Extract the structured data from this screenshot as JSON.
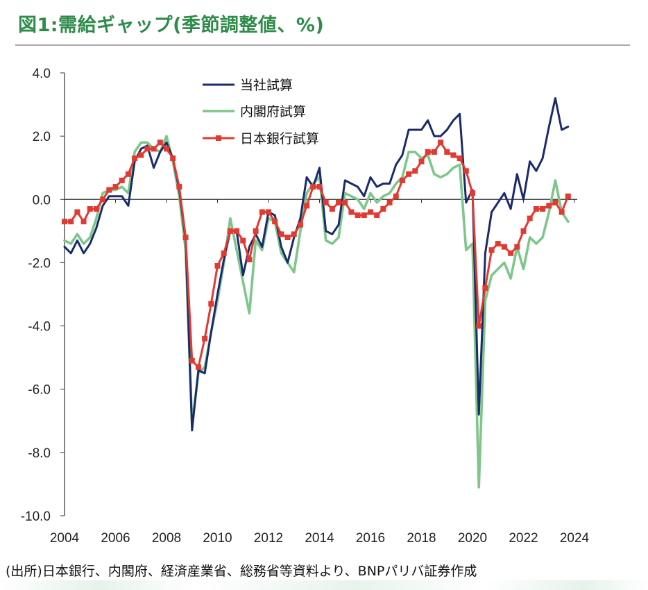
{
  "header": {
    "title": "図1:需給ギャップ(季節調整値、%)"
  },
  "source_note": "(出所)日本銀行、内閣府、経済産業省、総務省等資料より、BNPパリバ証券作成",
  "colors": {
    "title": "#2e8b4a",
    "series1": "#1b2a6b",
    "series2": "#7fc68b",
    "series3": "#e03a31"
  },
  "chart_data": {
    "type": "line",
    "xlabel": "",
    "ylabel": "",
    "xlim": [
      2004,
      2024
    ],
    "ylim": [
      -10,
      4
    ],
    "x_ticks": [
      "2004",
      "2006",
      "2008",
      "2010",
      "2012",
      "2014",
      "2016",
      "2018",
      "2020",
      "2022",
      "2024"
    ],
    "y_ticks": [
      "4.0",
      "2.0",
      "0.0",
      "-2.0",
      "-4.0",
      "-6.0",
      "-8.0",
      "-10.0"
    ],
    "legend_position": "top-center",
    "grid": false,
    "series": [
      {
        "name": "当社試算",
        "color": "#1b2a6b",
        "marker": "none",
        "points": [
          [
            2004.0,
            -1.5
          ],
          [
            2004.25,
            -1.7
          ],
          [
            2004.5,
            -1.3
          ],
          [
            2004.75,
            -1.7
          ],
          [
            2005.0,
            -1.4
          ],
          [
            2005.25,
            -0.9
          ],
          [
            2005.5,
            -0.2
          ],
          [
            2005.75,
            0.1
          ],
          [
            2006.0,
            0.1
          ],
          [
            2006.25,
            0.1
          ],
          [
            2006.5,
            -0.2
          ],
          [
            2006.75,
            1.2
          ],
          [
            2007.0,
            1.6
          ],
          [
            2007.25,
            1.7
          ],
          [
            2007.5,
            1.0
          ],
          [
            2007.75,
            1.5
          ],
          [
            2008.0,
            1.8
          ],
          [
            2008.25,
            1.3
          ],
          [
            2008.5,
            0.3
          ],
          [
            2008.75,
            -1.3
          ],
          [
            2009.0,
            -7.3
          ],
          [
            2009.25,
            -5.4
          ],
          [
            2009.5,
            -5.5
          ],
          [
            2009.75,
            -4.2
          ],
          [
            2010.0,
            -3.0
          ],
          [
            2010.25,
            -1.9
          ],
          [
            2010.5,
            -1.0
          ],
          [
            2010.75,
            -1.0
          ],
          [
            2011.0,
            -2.4
          ],
          [
            2011.25,
            -1.5
          ],
          [
            2011.5,
            -1.1
          ],
          [
            2011.75,
            -1.5
          ],
          [
            2012.0,
            -0.4
          ],
          [
            2012.25,
            -0.5
          ],
          [
            2012.5,
            -1.5
          ],
          [
            2012.75,
            -2.0
          ],
          [
            2013.0,
            -1.2
          ],
          [
            2013.25,
            -0.6
          ],
          [
            2013.5,
            0.7
          ],
          [
            2013.75,
            0.4
          ],
          [
            2014.0,
            1.0
          ],
          [
            2014.25,
            -1.0
          ],
          [
            2014.5,
            -1.1
          ],
          [
            2014.75,
            -0.8
          ],
          [
            2015.0,
            0.6
          ],
          [
            2015.25,
            0.5
          ],
          [
            2015.5,
            0.4
          ],
          [
            2015.75,
            0.1
          ],
          [
            2016.0,
            0.7
          ],
          [
            2016.25,
            0.4
          ],
          [
            2016.5,
            0.5
          ],
          [
            2016.75,
            0.5
          ],
          [
            2017.0,
            1.1
          ],
          [
            2017.25,
            1.4
          ],
          [
            2017.5,
            2.2
          ],
          [
            2017.75,
            2.2
          ],
          [
            2018.0,
            2.2
          ],
          [
            2018.25,
            2.5
          ],
          [
            2018.5,
            2.0
          ],
          [
            2018.75,
            2.0
          ],
          [
            2019.0,
            2.2
          ],
          [
            2019.25,
            2.5
          ],
          [
            2019.5,
            2.7
          ],
          [
            2019.75,
            -0.1
          ],
          [
            2020.0,
            0.3
          ],
          [
            2020.25,
            -6.8
          ],
          [
            2020.5,
            -1.7
          ],
          [
            2020.75,
            -0.4
          ],
          [
            2021.0,
            -0.1
          ],
          [
            2021.25,
            0.2
          ],
          [
            2021.5,
            -0.3
          ],
          [
            2021.75,
            0.8
          ],
          [
            2022.0,
            0.0
          ],
          [
            2022.25,
            1.2
          ],
          [
            2022.5,
            0.9
          ],
          [
            2022.75,
            1.3
          ],
          [
            2023.0,
            2.3
          ],
          [
            2023.25,
            3.2
          ],
          [
            2023.5,
            2.2
          ],
          [
            2023.75,
            2.3
          ]
        ]
      },
      {
        "name": "内閣府試算",
        "color": "#7fc68b",
        "marker": "none",
        "points": [
          [
            2004.0,
            -1.3
          ],
          [
            2004.25,
            -1.4
          ],
          [
            2004.5,
            -1.1
          ],
          [
            2004.75,
            -1.4
          ],
          [
            2005.0,
            -1.2
          ],
          [
            2005.25,
            -0.6
          ],
          [
            2005.5,
            0.2
          ],
          [
            2005.75,
            0.3
          ],
          [
            2006.0,
            0.3
          ],
          [
            2006.25,
            0.4
          ],
          [
            2006.5,
            0.2
          ],
          [
            2006.75,
            1.5
          ],
          [
            2007.0,
            1.8
          ],
          [
            2007.25,
            1.8
          ],
          [
            2007.5,
            1.6
          ],
          [
            2007.75,
            1.5
          ],
          [
            2008.0,
            2.0
          ],
          [
            2008.25,
            1.2
          ],
          [
            2008.5,
            0.1
          ],
          [
            2008.75,
            -1.6
          ],
          [
            2009.0,
            -7.1
          ],
          [
            2009.25,
            -5.5
          ],
          [
            2009.5,
            -5.3
          ],
          [
            2009.75,
            -4.2
          ],
          [
            2010.0,
            -3.2
          ],
          [
            2010.25,
            -2.0
          ],
          [
            2010.5,
            -0.6
          ],
          [
            2010.75,
            -1.6
          ],
          [
            2011.0,
            -2.6
          ],
          [
            2011.25,
            -3.6
          ],
          [
            2011.5,
            -1.3
          ],
          [
            2011.75,
            -1.6
          ],
          [
            2012.0,
            -0.6
          ],
          [
            2012.25,
            -0.7
          ],
          [
            2012.5,
            -1.7
          ],
          [
            2012.75,
            -2.0
          ],
          [
            2013.0,
            -2.3
          ],
          [
            2013.25,
            -1.0
          ],
          [
            2013.5,
            0.2
          ],
          [
            2013.75,
            0.5
          ],
          [
            2014.0,
            0.7
          ],
          [
            2014.25,
            -1.3
          ],
          [
            2014.5,
            -1.4
          ],
          [
            2014.75,
            -1.2
          ],
          [
            2015.0,
            0.2
          ],
          [
            2015.25,
            0.1
          ],
          [
            2015.5,
            0.0
          ],
          [
            2015.75,
            -0.3
          ],
          [
            2016.0,
            0.2
          ],
          [
            2016.25,
            -0.1
          ],
          [
            2016.5,
            0.1
          ],
          [
            2016.75,
            0.2
          ],
          [
            2017.0,
            0.5
          ],
          [
            2017.25,
            0.7
          ],
          [
            2017.5,
            1.5
          ],
          [
            2017.75,
            1.5
          ],
          [
            2018.0,
            1.3
          ],
          [
            2018.25,
            1.4
          ],
          [
            2018.5,
            0.8
          ],
          [
            2018.75,
            0.7
          ],
          [
            2019.0,
            0.8
          ],
          [
            2019.25,
            1.0
          ],
          [
            2019.5,
            1.1
          ],
          [
            2019.75,
            -1.6
          ],
          [
            2020.0,
            -1.4
          ],
          [
            2020.25,
            -9.1
          ],
          [
            2020.5,
            -3.2
          ],
          [
            2020.75,
            -2.4
          ],
          [
            2021.0,
            -2.2
          ],
          [
            2021.25,
            -2.0
          ],
          [
            2021.5,
            -2.5
          ],
          [
            2021.75,
            -1.5
          ],
          [
            2022.0,
            -2.2
          ],
          [
            2022.25,
            -1.2
          ],
          [
            2022.5,
            -1.4
          ],
          [
            2022.75,
            -1.2
          ],
          [
            2023.0,
            -0.4
          ],
          [
            2023.25,
            0.6
          ],
          [
            2023.5,
            -0.4
          ],
          [
            2023.75,
            -0.7
          ]
        ]
      },
      {
        "name": "日本銀行試算",
        "color": "#e03a31",
        "marker": "square",
        "points": [
          [
            2004.0,
            -0.7
          ],
          [
            2004.25,
            -0.7
          ],
          [
            2004.5,
            -0.4
          ],
          [
            2004.75,
            -0.7
          ],
          [
            2005.0,
            -0.3
          ],
          [
            2005.25,
            -0.3
          ],
          [
            2005.5,
            0.0
          ],
          [
            2005.75,
            0.3
          ],
          [
            2006.0,
            0.4
          ],
          [
            2006.25,
            0.6
          ],
          [
            2006.5,
            0.8
          ],
          [
            2006.75,
            1.3
          ],
          [
            2007.0,
            1.4
          ],
          [
            2007.25,
            1.6
          ],
          [
            2007.5,
            1.6
          ],
          [
            2007.75,
            1.8
          ],
          [
            2008.0,
            1.6
          ],
          [
            2008.25,
            1.3
          ],
          [
            2008.5,
            0.4
          ],
          [
            2008.75,
            -1.2
          ],
          [
            2009.0,
            -5.1
          ],
          [
            2009.25,
            -5.3
          ],
          [
            2009.5,
            -4.4
          ],
          [
            2009.75,
            -3.3
          ],
          [
            2010.0,
            -2.1
          ],
          [
            2010.25,
            -1.7
          ],
          [
            2010.5,
            -1.0
          ],
          [
            2010.75,
            -1.0
          ],
          [
            2011.0,
            -1.3
          ],
          [
            2011.25,
            -1.9
          ],
          [
            2011.5,
            -1.0
          ],
          [
            2011.75,
            -0.4
          ],
          [
            2012.0,
            -0.4
          ],
          [
            2012.25,
            -0.7
          ],
          [
            2012.5,
            -1.1
          ],
          [
            2012.75,
            -1.2
          ],
          [
            2013.0,
            -1.1
          ],
          [
            2013.25,
            -0.8
          ],
          [
            2013.5,
            -0.2
          ],
          [
            2013.75,
            0.4
          ],
          [
            2014.0,
            0.4
          ],
          [
            2014.25,
            -0.1
          ],
          [
            2014.5,
            -0.3
          ],
          [
            2014.75,
            -0.1
          ],
          [
            2015.0,
            -0.1
          ],
          [
            2015.25,
            -0.4
          ],
          [
            2015.5,
            -0.5
          ],
          [
            2015.75,
            -0.5
          ],
          [
            2016.0,
            -0.4
          ],
          [
            2016.25,
            -0.5
          ],
          [
            2016.5,
            -0.3
          ],
          [
            2016.75,
            -0.1
          ],
          [
            2017.0,
            0.1
          ],
          [
            2017.25,
            0.6
          ],
          [
            2017.5,
            0.8
          ],
          [
            2017.75,
            0.9
          ],
          [
            2018.0,
            1.2
          ],
          [
            2018.25,
            1.5
          ],
          [
            2018.5,
            1.5
          ],
          [
            2018.75,
            1.8
          ],
          [
            2019.0,
            1.5
          ],
          [
            2019.25,
            1.4
          ],
          [
            2019.5,
            1.3
          ],
          [
            2019.75,
            0.9
          ],
          [
            2020.0,
            0.2
          ],
          [
            2020.25,
            -4.0
          ],
          [
            2020.5,
            -2.8
          ],
          [
            2020.75,
            -1.6
          ],
          [
            2021.0,
            -1.4
          ],
          [
            2021.25,
            -1.5
          ],
          [
            2021.5,
            -1.7
          ],
          [
            2021.75,
            -1.5
          ],
          [
            2022.0,
            -1.0
          ],
          [
            2022.25,
            -0.6
          ],
          [
            2022.5,
            -0.3
          ],
          [
            2022.75,
            -0.3
          ],
          [
            2023.0,
            -0.2
          ],
          [
            2023.25,
            -0.1
          ],
          [
            2023.5,
            -0.4
          ],
          [
            2023.75,
            0.1
          ]
        ]
      }
    ]
  }
}
